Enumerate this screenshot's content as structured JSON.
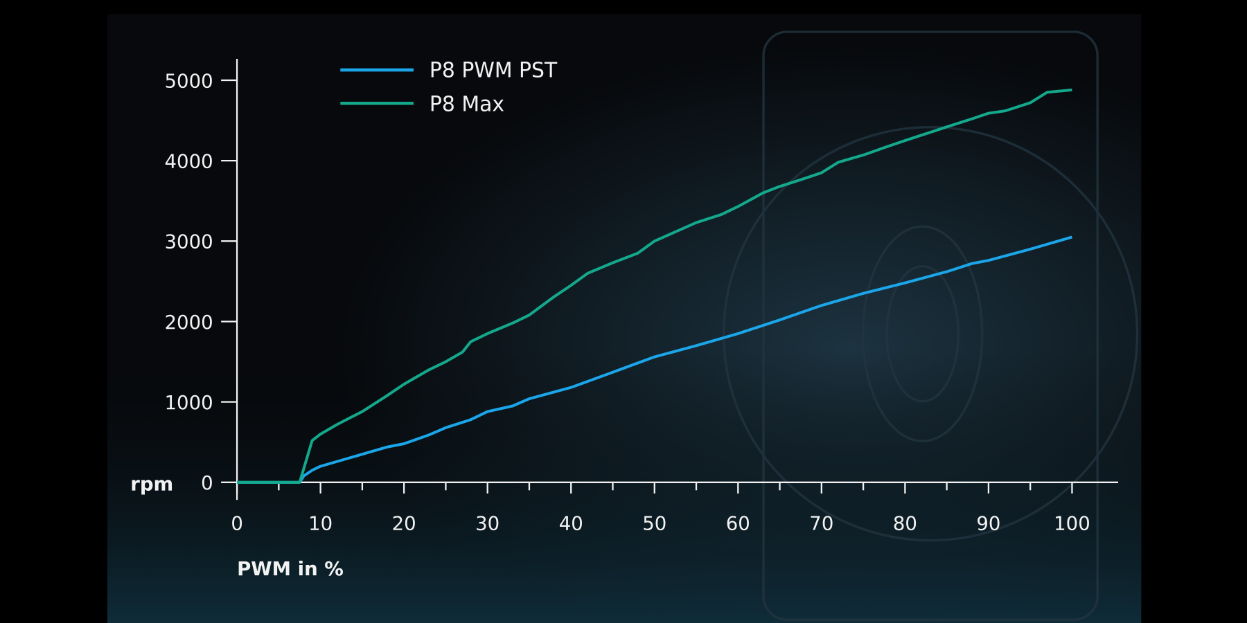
{
  "chart_data": {
    "type": "line",
    "title": "",
    "xlabel": "PWM in %",
    "ylabel": "rpm",
    "xlim": [
      0,
      100
    ],
    "ylim": [
      0,
      5000
    ],
    "xticks": [
      0,
      10,
      20,
      30,
      40,
      50,
      60,
      70,
      80,
      90,
      100
    ],
    "yticks": [
      0,
      1000,
      2000,
      3000,
      4000,
      5000
    ],
    "legend_position": "top-left",
    "grid": false,
    "series": [
      {
        "name": "P8 PWM PST",
        "color": "#1ba6ea",
        "x": [
          0,
          7.5,
          8,
          9,
          10,
          12,
          15,
          18,
          20,
          23,
          25,
          28,
          30,
          33,
          35,
          40,
          45,
          50,
          55,
          60,
          65,
          70,
          75,
          80,
          85,
          88,
          90,
          95,
          100
        ],
        "y": [
          0,
          0,
          80,
          150,
          200,
          260,
          350,
          440,
          480,
          590,
          680,
          780,
          880,
          950,
          1040,
          1180,
          1370,
          1560,
          1700,
          1850,
          2020,
          2200,
          2350,
          2480,
          2620,
          2720,
          2760,
          2900,
          3050
        ]
      },
      {
        "name": "P8 Max",
        "color": "#14a88c",
        "x": [
          0,
          7.5,
          9,
          10,
          12,
          15,
          18,
          20,
          23,
          25,
          27,
          28,
          30,
          33,
          35,
          38,
          40,
          42,
          45,
          48,
          50,
          55,
          58,
          60,
          63,
          65,
          68,
          70,
          72,
          75,
          78,
          80,
          85,
          88,
          90,
          92,
          95,
          97,
          100
        ],
        "y": [
          0,
          0,
          520,
          600,
          720,
          880,
          1080,
          1220,
          1400,
          1500,
          1620,
          1750,
          1850,
          1980,
          2080,
          2310,
          2450,
          2600,
          2730,
          2850,
          3000,
          3230,
          3330,
          3430,
          3600,
          3680,
          3780,
          3850,
          3980,
          4070,
          4180,
          4250,
          4420,
          4520,
          4590,
          4620,
          4720,
          4850,
          4880
        ]
      }
    ]
  }
}
